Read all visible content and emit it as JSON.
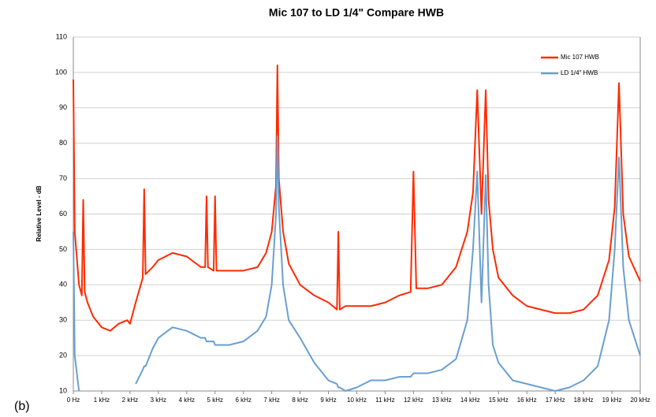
{
  "chart_data": {
    "type": "line",
    "title": "Mic 107 to LD 1/4\" Compare HWB",
    "panel_label": "(b)",
    "y_label": "Relative Level - dB",
    "x": [
      0,
      0.05,
      0.2,
      0.3,
      0.35,
      0.4,
      0.5,
      0.7,
      1.0,
      1.3,
      1.6,
      1.9,
      2.0,
      2.2,
      2.45,
      2.5,
      2.55,
      2.8,
      3.0,
      3.5,
      4.0,
      4.5,
      4.65,
      4.7,
      4.75,
      4.95,
      5.0,
      5.05,
      5.5,
      6.0,
      6.5,
      6.8,
      7.0,
      7.15,
      7.2,
      7.25,
      7.4,
      7.6,
      8.0,
      8.5,
      9.0,
      9.3,
      9.35,
      9.4,
      9.6,
      10.0,
      10.5,
      11.0,
      11.5,
      11.9,
      12.0,
      12.1,
      12.5,
      13.0,
      13.5,
      13.9,
      14.1,
      14.25,
      14.4,
      14.55,
      14.65,
      14.8,
      15.0,
      15.5,
      16.0,
      16.5,
      17.0,
      17.5,
      18.0,
      18.5,
      18.9,
      19.1,
      19.25,
      19.4,
      19.6,
      20.0
    ],
    "series": [
      {
        "name": "Mic 107 HWB",
        "color": "#ff2a00",
        "values": [
          98,
          55,
          40,
          37,
          64,
          38,
          35,
          31,
          28,
          27,
          29,
          30,
          29,
          35,
          42,
          67,
          43,
          45,
          47,
          49,
          48,
          45,
          45,
          65,
          45,
          44,
          65,
          44,
          44,
          44,
          45,
          49,
          55,
          68,
          102,
          70,
          55,
          46,
          40,
          37,
          35,
          33,
          55,
          33,
          34,
          34,
          34,
          35,
          37,
          38,
          72,
          39,
          39,
          40,
          45,
          55,
          66,
          95,
          60,
          95,
          64,
          50,
          42,
          37,
          34,
          33,
          32,
          32,
          33,
          37,
          47,
          62,
          97,
          60,
          48,
          41
        ]
      },
      {
        "name": "LD 1/4\" HWB",
        "color": "#6a9fd0",
        "values": [
          55,
          20,
          10,
          null,
          null,
          null,
          null,
          null,
          null,
          null,
          null,
          null,
          null,
          12,
          16,
          17,
          17,
          22,
          25,
          28,
          27,
          25,
          25,
          24,
          24,
          24,
          23,
          23,
          23,
          24,
          27,
          31,
          40,
          60,
          82,
          62,
          40,
          30,
          25,
          18,
          13,
          12,
          11,
          11,
          10,
          11,
          13,
          13,
          14,
          14,
          15,
          15,
          15,
          16,
          19,
          30,
          50,
          72,
          35,
          71,
          40,
          23,
          18,
          13,
          12,
          11,
          10,
          11,
          13,
          17,
          30,
          50,
          76,
          45,
          30,
          20
        ]
      }
    ],
    "xlim": [
      0,
      20
    ],
    "xticks": [
      {
        "value": 0,
        "label": "0 Hz"
      },
      {
        "value": 1,
        "label": "1 kHz"
      },
      {
        "value": 2,
        "label": "2 kHz"
      },
      {
        "value": 3,
        "label": "3 kHz"
      },
      {
        "value": 4,
        "label": "4 kHz"
      },
      {
        "value": 5,
        "label": "5 kHz"
      },
      {
        "value": 6,
        "label": "6 kHz"
      },
      {
        "value": 7,
        "label": "7 kHz"
      },
      {
        "value": 8,
        "label": "8 kHz"
      },
      {
        "value": 9,
        "label": "9 kHz"
      },
      {
        "value": 10,
        "label": "10 kHz"
      },
      {
        "value": 11,
        "label": "11 kHz"
      },
      {
        "value": 12,
        "label": "12 kHz"
      },
      {
        "value": 13,
        "label": "13 kHz"
      },
      {
        "value": 14,
        "label": "14 kHz"
      },
      {
        "value": 15,
        "label": "15 kHz"
      },
      {
        "value": 16,
        "label": "16 kHz"
      },
      {
        "value": 17,
        "label": "17 kHz"
      },
      {
        "value": 18,
        "label": "18 kHz"
      },
      {
        "value": 19,
        "label": "19 kHz"
      },
      {
        "value": 20,
        "label": "20 kHz"
      }
    ],
    "ylim": [
      10,
      110
    ],
    "yticks": [
      10,
      20,
      30,
      40,
      50,
      60,
      70,
      80,
      90,
      100,
      110
    ],
    "grid": true,
    "legend": "upper right"
  }
}
